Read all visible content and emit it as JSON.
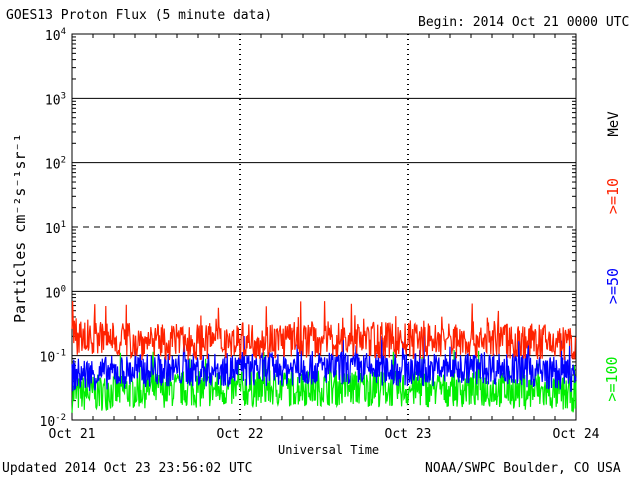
{
  "header": {
    "title": "GOES13 Proton Flux (5 minute data)",
    "begin": "Begin: 2014 Oct 21 0000 UTC"
  },
  "footer": {
    "updated": "Updated 2014 Oct 23 23:56:02 UTC",
    "credit": "NOAA/SWPC Boulder, CO USA"
  },
  "chart_data": {
    "type": "line",
    "title": "GOES13 Proton Flux (5 minute data)",
    "xlabel": "Universal Time",
    "ylabel": "Particles cm⁻²s⁻¹sr⁻¹",
    "yscale": "log",
    "ylim": [
      0.01,
      10000
    ],
    "xlim": [
      "2014-10-21",
      "2014-10-24"
    ],
    "x_ticks": [
      "Oct 21",
      "Oct 22",
      "Oct 23",
      "Oct 24"
    ],
    "y_ticks": [
      {
        "base": "10",
        "exp": "-2",
        "value": 0.01
      },
      {
        "base": "10",
        "exp": "-1",
        "value": 0.1
      },
      {
        "base": "10",
        "exp": "0",
        "value": 1
      },
      {
        "base": "10",
        "exp": "1",
        "value": 10
      },
      {
        "base": "10",
        "exp": "2",
        "value": 100
      },
      {
        "base": "10",
        "exp": "3",
        "value": 1000
      },
      {
        "base": "10",
        "exp": "4",
        "value": 10000
      }
    ],
    "threshold_lines": [
      {
        "value": 10,
        "style": "dashed"
      }
    ],
    "series": [
      {
        "name": ">=10",
        "color": "#ff2200",
        "unit": "MeV",
        "x": [
          "2014-10-21",
          "2014-10-21 12:00",
          "2014-10-22",
          "2014-10-22 12:00",
          "2014-10-23",
          "2014-10-23 12:00",
          "2014-10-24"
        ],
        "values": [
          0.2,
          0.16,
          0.17,
          0.18,
          0.17,
          0.18,
          0.15
        ]
      },
      {
        "name": ">=50",
        "color": "#0000ff",
        "x": [
          "2014-10-21",
          "2014-10-21 12:00",
          "2014-10-22",
          "2014-10-22 12:00",
          "2014-10-23",
          "2014-10-23 12:00",
          "2014-10-24"
        ],
        "values": [
          0.05,
          0.06,
          0.06,
          0.065,
          0.06,
          0.065,
          0.05
        ]
      },
      {
        "name": ">=100",
        "color": "#00ee00",
        "x": [
          "2014-10-21",
          "2014-10-21 12:00",
          "2014-10-22",
          "2014-10-22 12:00",
          "2014-10-23",
          "2014-10-23 12:00",
          "2014-10-24"
        ],
        "values": [
          0.025,
          0.03,
          0.03,
          0.032,
          0.03,
          0.03,
          0.025
        ]
      }
    ]
  }
}
